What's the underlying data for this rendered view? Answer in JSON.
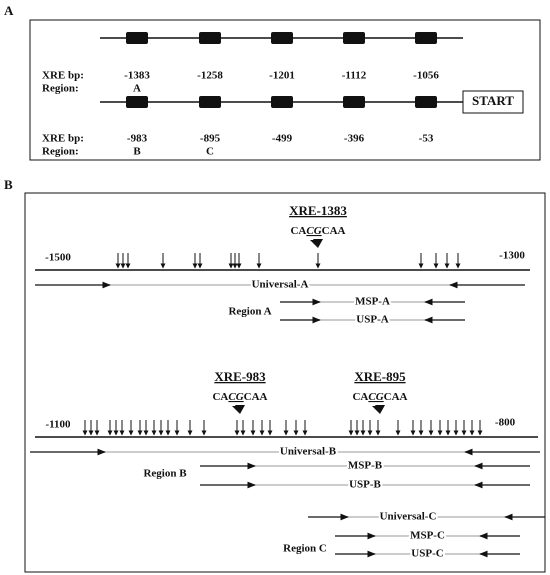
{
  "panel_a": {
    "label": "A",
    "start": "START",
    "rows": [
      {
        "bp_label": "XRE bp:",
        "region_label": "Region:",
        "sites": [
          {
            "bp": "-1383",
            "region": "A"
          },
          {
            "bp": "-1258"
          },
          {
            "bp": "-1201"
          },
          {
            "bp": "-1112"
          },
          {
            "bp": "-1056"
          }
        ]
      },
      {
        "bp_label": "XRE bp:",
        "region_label": "Region:",
        "sites": [
          {
            "bp": "-983",
            "region": "B"
          },
          {
            "bp": "-895",
            "region": "C"
          },
          {
            "bp": "-499"
          },
          {
            "bp": "-396"
          },
          {
            "bp": "-53"
          }
        ]
      }
    ]
  },
  "panel_b": {
    "label": "B",
    "groups": [
      {
        "xres": [
          {
            "name": "XRE-1383",
            "seq_pre": "CA",
            "seq_cg": "CG",
            "seq_post": "CAA"
          }
        ],
        "left_coord": "-1500",
        "right_coord": "-1300",
        "universal": "Universal-A",
        "region": "Region A",
        "msp": "MSP-A",
        "usp": "USP-A"
      },
      {
        "xres": [
          {
            "name": "XRE-983",
            "seq_pre": "CA",
            "seq_cg": "CG",
            "seq_post": "CAA"
          },
          {
            "name": "XRE-895",
            "seq_pre": "CA",
            "seq_cg": "CG",
            "seq_post": "CAA"
          }
        ],
        "left_coord": "-1100",
        "right_coord": "-800",
        "universal": "Universal-B",
        "region": "Region B",
        "msp": "MSP-B",
        "usp": "USP-B"
      }
    ],
    "region_c": {
      "universal": "Universal-C",
      "region": "Region C",
      "msp": "MSP-C",
      "usp": "USP-C"
    }
  }
}
